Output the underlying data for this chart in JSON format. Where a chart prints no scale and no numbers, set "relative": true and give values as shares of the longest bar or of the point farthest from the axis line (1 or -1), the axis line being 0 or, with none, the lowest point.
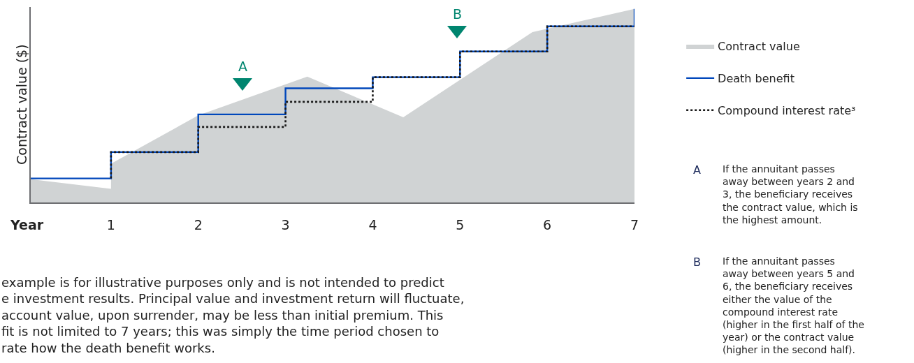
{
  "chart_data": {
    "type": "step",
    "ylabel": "Contract value ($)",
    "xlabel": "Year",
    "relative": true,
    "tick_labels": "x",
    "legend": "right",
    "xlim": [
      0.08,
      7
    ],
    "xticks": [
      1,
      2,
      3,
      4,
      5,
      6,
      7
    ],
    "series": [
      {
        "name": "Contract value",
        "type": "area",
        "color": "#d0d3d4",
        "x": [
          0.08,
          1,
          1,
          2,
          3.25,
          4.35,
          5.83,
          7
        ],
        "values": [
          0.12,
          0.07,
          0.2,
          0.45,
          0.65,
          0.44,
          0.88,
          1.0
        ]
      },
      {
        "name": "Death benefit",
        "color": "#0047bb",
        "line_style": "solid",
        "x": [
          0.08,
          1,
          2,
          3,
          4,
          5,
          6,
          7
        ],
        "values": [
          0.124,
          0.26,
          0.455,
          0.59,
          0.647,
          0.78,
          0.91,
          1.0
        ]
      },
      {
        "name": "Compound interest rate³",
        "color": "#1a1a1a",
        "line_style": "dotted",
        "x": [
          1,
          1,
          2,
          3,
          4,
          5,
          6,
          7
        ],
        "values": [
          0.124,
          0.26,
          0.39,
          0.52,
          0.647,
          0.78,
          0.91,
          0.91
        ]
      }
    ],
    "annotations": [
      "A",
      "B",
      "A",
      "If the annuitant passes\naway between years 2 and\n3, the beneficiary receives\nthe contract value, which is\nthe highest amount.",
      "B",
      "If the annuitant passes\naway between years 5 and\n6, the beneficiary receives\neither the value of the\ncompound interest rate\n(higher in the first half of the\nyear) or the contract value\n(higher in the second half).",
      "example is for illustrative purposes only and is not intended to predict\ne investment results. Principal value and investment return will fluctuate,\naccount value, upon surrender, may be less than initial premium. This\nfit is not limited to 7 years; this was simply the time period chosen to\nrate how the death benefit works."
    ]
  }
}
